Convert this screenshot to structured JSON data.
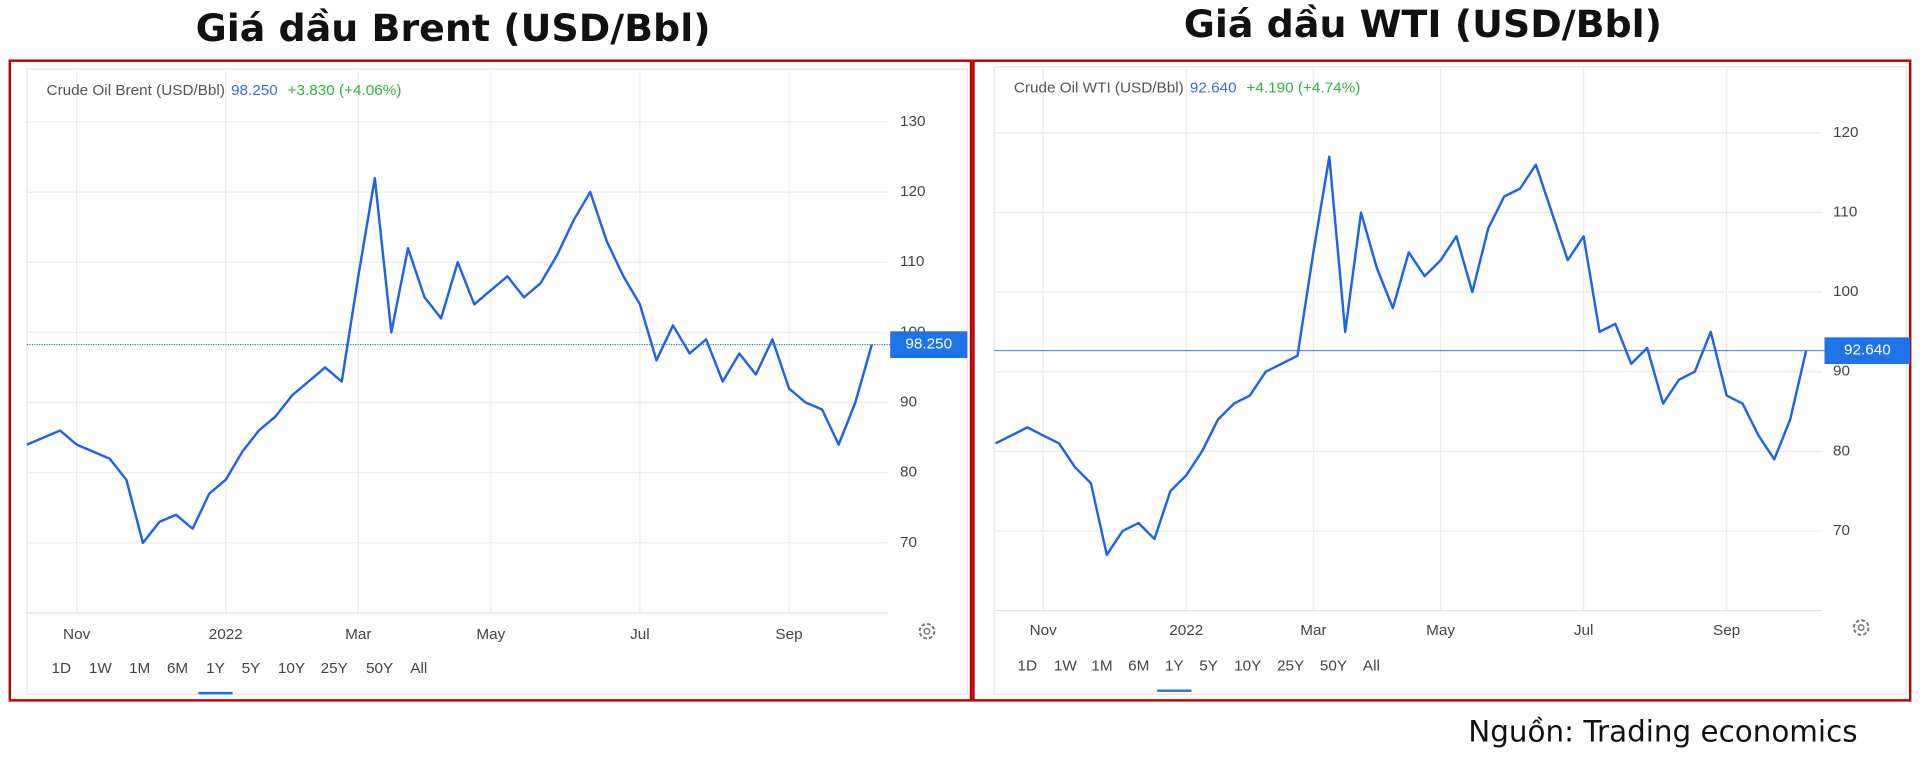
{
  "chart_data": [
    {
      "type": "line",
      "title": "Giá dầu Brent (USD/Bbl)",
      "last": "98.250",
      "change": "+3.830 (+4.06%)",
      "categories": [
        null,
        null,
        null,
        "Nov",
        null,
        null,
        null,
        null,
        null,
        null,
        null,
        null,
        "2022",
        null,
        null,
        null,
        null,
        null,
        null,
        null,
        "Mar",
        null,
        null,
        null,
        null,
        null,
        null,
        null,
        "May",
        null,
        null,
        null,
        null,
        null,
        null,
        null,
        null,
        "Jul",
        null,
        null,
        null,
        null,
        null,
        null,
        null,
        null,
        "Sep",
        null,
        null,
        null,
        null,
        null
      ],
      "series": [
        {
          "name": "Crude Oil Brent (USD/Bbl)",
          "color": "#1f63e8",
          "values": [
            84,
            85,
            86,
            84,
            83,
            82,
            79,
            70,
            73,
            74,
            72,
            77,
            79,
            83,
            86,
            88,
            91,
            93,
            95,
            93,
            108,
            122,
            100,
            112,
            105,
            102,
            110,
            104,
            106,
            108,
            105,
            107,
            111,
            116,
            120,
            113,
            108,
            104,
            96,
            101,
            97,
            99,
            93,
            97,
            94,
            99,
            92,
            90,
            89,
            84,
            90,
            98.25
          ]
        }
      ],
      "ylim": [
        60,
        137
      ],
      "yticks": [
        70,
        80,
        90,
        100,
        110,
        120,
        130
      ],
      "grid": true,
      "ranges": [
        "1D",
        "1W",
        "1M",
        "6M",
        "1Y",
        "5Y",
        "10Y",
        "25Y",
        "50Y",
        "All"
      ],
      "active": "1Y"
    },
    {
      "type": "line",
      "title": "Giá dầu WTI (USD/Bbl)",
      "last": "92.640",
      "change": "+4.190 (+4.74%)",
      "categories": [
        null,
        null,
        null,
        "Nov",
        null,
        null,
        null,
        null,
        null,
        null,
        null,
        null,
        "2022",
        null,
        null,
        null,
        null,
        null,
        null,
        null,
        "Mar",
        null,
        null,
        null,
        null,
        null,
        null,
        null,
        "May",
        null,
        null,
        null,
        null,
        null,
        null,
        null,
        null,
        "Jul",
        null,
        null,
        null,
        null,
        null,
        null,
        null,
        null,
        "Sep",
        null,
        null,
        null,
        null,
        null
      ],
      "series": [
        {
          "name": "Crude Oil WTI (USD/Bbl)",
          "color": "#1f63e8",
          "values": [
            81,
            82,
            83,
            82,
            81,
            78,
            76,
            67,
            70,
            71,
            69,
            75,
            77,
            80,
            84,
            86,
            87,
            90,
            91,
            92,
            105,
            117,
            95,
            110,
            103,
            98,
            105,
            102,
            104,
            107,
            100,
            108,
            112,
            113,
            116,
            110,
            104,
            107,
            95,
            96,
            91,
            93,
            86,
            89,
            90,
            95,
            87,
            86,
            82,
            79,
            84,
            92.64
          ]
        }
      ],
      "ylim": [
        60,
        128
      ],
      "yticks": [
        70,
        80,
        90,
        100,
        110,
        120
      ],
      "grid": true,
      "ranges": [
        "1D",
        "1W",
        "1M",
        "6M",
        "1Y",
        "5Y",
        "10Y",
        "25Y",
        "50Y",
        "All"
      ],
      "active": "1Y"
    }
  ],
  "source": "Nguồn: Trading economics"
}
